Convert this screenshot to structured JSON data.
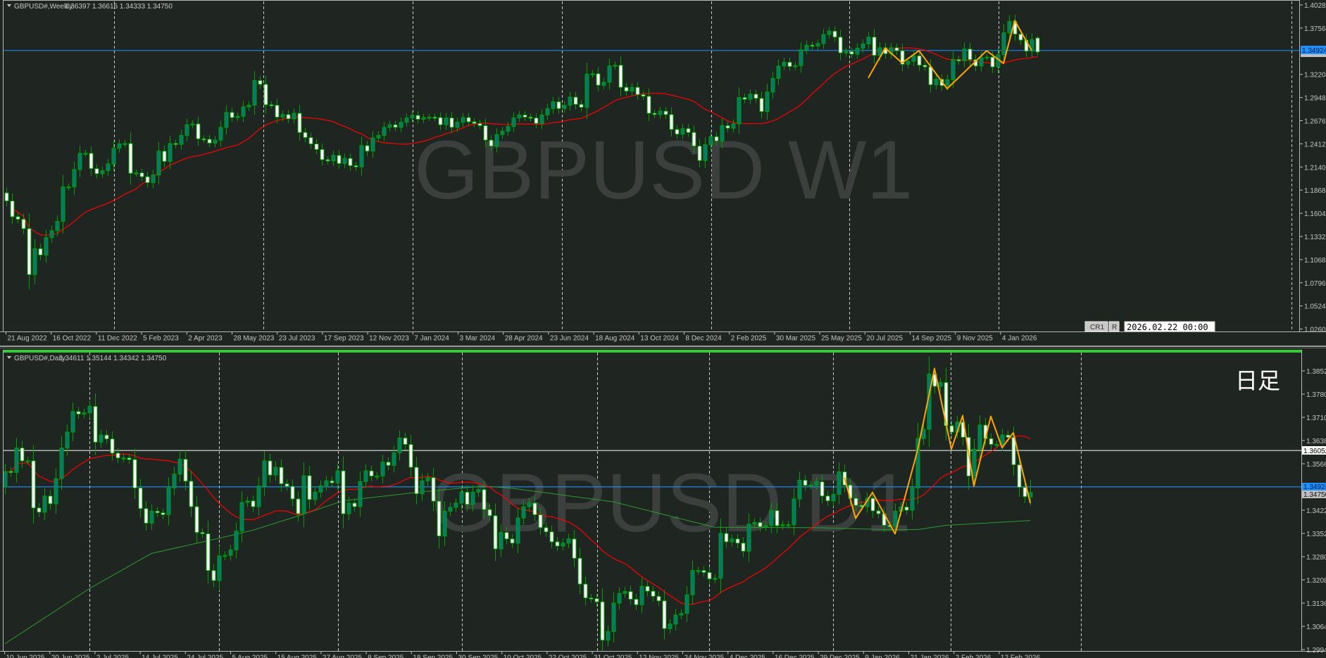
{
  "weekly": {
    "symbol": "GBPUSD#,Weekly",
    "ohlc": "1.36397 1.36615 1.34333 1.34750",
    "watermark": "GBPUSD W1",
    "price_ticks": [
      "1.40280",
      "1.37560",
      "1.32200",
      "1.29480",
      "1.26760",
      "1.24120",
      "1.21400",
      "1.18680",
      "1.16040",
      "1.13320",
      "1.10680",
      "1.07960",
      "1.05240",
      "1.02600"
    ],
    "bid_label": "1.34924",
    "close_label": "1.34750",
    "date_labels": [
      "21 Aug 2022",
      "16 Oct 2022",
      "11 Dec 2022",
      "5 Feb 2023",
      "2 Apr 2023",
      "28 May 2023",
      "23 Jul 2023",
      "17 Sep 2023",
      "12 Nov 2023",
      "7 Jan 2024",
      "3 Mar 2024",
      "28 Apr 2024",
      "23 Jun 2024",
      "18 Aug 2024",
      "13 Oct 2024",
      "8 Dec 2024",
      "2 Feb 2025",
      "30 Mar 2025",
      "25 May 2025",
      "20 Jul 2025",
      "14 Sep 2025",
      "9 Nov 2025",
      "4 Jan 2026"
    ],
    "cr1_button": "CR1",
    "r_button": "R",
    "datetime_value": "2026.02.22 00:00"
  },
  "daily": {
    "symbol": "GBPUSD#,Daily",
    "ohlc": "1.34611 1.35144 1.34342 1.34750",
    "watermark": "GBPUSD D1",
    "timeframe_label": "日足",
    "price_ticks": [
      "1.38520",
      "1.37800",
      "1.37100",
      "1.36380",
      "1.35660",
      "1.34220",
      "1.33520",
      "1.32800",
      "1.32080",
      "1.31360",
      "1.30640",
      "1.29940"
    ],
    "hline_label": "1.36052",
    "bid_label": "1.34924",
    "close_label": "1.34750",
    "date_labels": [
      "10 Jun 2025",
      "20 Jun 2025",
      "2 Jul 2025",
      "14 Jul 2025",
      "24 Jul 2025",
      "5 Aug 2025",
      "15 Aug 2025",
      "27 Aug 2025",
      "8 Sep 2025",
      "18 Sep 2025",
      "30 Sep 2025",
      "10 Oct 2025",
      "22 Oct 2025",
      "31 Oct 2025",
      "12 Nov 2025",
      "24 Nov 2025",
      "4 Dec 2025",
      "16 Dec 2025",
      "29 Dec 2025",
      "9 Jan 2026",
      "21 Jan 2026",
      "2 Feb 2026",
      "12 Feb 2026"
    ]
  },
  "colors": {
    "background": "#1f2622",
    "bull_body": "#007a6e",
    "bull_outline": "#00a000",
    "bear_body": "#ffffff",
    "wick": "#00a000",
    "ma_fast": "#ff0000",
    "ma_slow": "#2e9a2e",
    "zigzag": "#ffa500",
    "bid_line": "#1e90ff",
    "hline": "#ffffff",
    "active_bar": "#33cc33"
  },
  "chart_data": [
    {
      "type": "candlestick",
      "title": "",
      "timeframe": "W1",
      "ylim": [
        1.026,
        1.4028
      ],
      "grid": false,
      "first_open": 1.182,
      "last_bar": {
        "open": 1.36397,
        "high": 1.36615,
        "low": 1.34333,
        "close": 1.3475
      },
      "closes": [
        1.1725,
        1.154,
        1.151,
        1.14,
        1.086,
        1.1165,
        1.109,
        1.1295,
        1.1375,
        1.1485,
        1.189,
        1.189,
        1.2095,
        1.2285,
        1.2285,
        1.2105,
        1.2045,
        1.208,
        1.216,
        1.2345,
        1.2395,
        1.24,
        1.205,
        1.2055,
        1.201,
        1.194,
        1.203,
        1.231,
        1.219,
        1.24,
        1.239,
        1.2495,
        1.262,
        1.263,
        1.2455,
        1.245,
        1.2405,
        1.244,
        1.259,
        1.2765,
        1.2705,
        1.272,
        1.283,
        1.285,
        1.314,
        1.3095,
        1.2855,
        1.285,
        1.271,
        1.274,
        1.269,
        1.2755,
        1.253,
        1.247,
        1.2395,
        1.233,
        1.221,
        1.2195,
        1.226,
        1.2165,
        1.2225,
        1.214,
        1.2125,
        1.2375,
        1.231,
        1.2465,
        1.2495,
        1.259,
        1.262,
        1.259,
        1.265,
        1.27,
        1.273,
        1.2685,
        1.2705,
        1.271,
        1.2705,
        1.262,
        1.27,
        1.259,
        1.265,
        1.2705,
        1.2655,
        1.2635,
        1.261,
        1.244,
        1.237,
        1.2505,
        1.2545,
        1.26,
        1.27,
        1.2735,
        1.271,
        1.27,
        1.2635,
        1.2735,
        1.281,
        1.289,
        1.281,
        1.285,
        1.2945,
        1.286,
        1.2825,
        1.3215,
        1.322,
        1.3085,
        1.312,
        1.331,
        1.332,
        1.306,
        1.3015,
        1.306,
        1.2975,
        1.2955,
        1.2755,
        1.274,
        1.278,
        1.274,
        1.2565,
        1.251,
        1.2575,
        1.253,
        1.237,
        1.22,
        1.2385,
        1.248,
        1.243,
        1.261,
        1.258,
        1.263,
        1.294,
        1.292,
        1.298,
        1.293,
        1.2775,
        1.3005,
        1.3165,
        1.331,
        1.3355,
        1.3305,
        1.3315,
        1.35,
        1.3555,
        1.3545,
        1.3575,
        1.368,
        1.372,
        1.365,
        1.3465,
        1.348,
        1.345,
        1.352,
        1.357,
        1.365,
        1.3435,
        1.3525,
        1.3455,
        1.3525,
        1.349,
        1.333,
        1.3365,
        1.343,
        1.332,
        1.33,
        1.309,
        1.3155,
        1.308,
        1.315,
        1.3385,
        1.337,
        1.351,
        1.3385,
        1.331,
        1.341,
        1.3415,
        1.33,
        1.3445,
        1.37,
        1.3835,
        1.3685,
        1.3615,
        1.3485,
        1.362,
        1.3475
      ],
      "zigzag": [
        [
          153,
          1.317
        ],
        [
          156,
          1.3521
        ],
        [
          159,
          1.3347
        ],
        [
          162,
          1.349
        ],
        [
          167,
          1.3044
        ],
        [
          174,
          1.349
        ],
        [
          177,
          1.3342
        ],
        [
          179,
          1.3844
        ],
        [
          182,
          1.3493
        ]
      ],
      "bid": 1.34924
    },
    {
      "type": "candlestick",
      "title": "",
      "timeframe": "D1",
      "ylim": [
        1.2994,
        1.3852
      ],
      "grid": false,
      "first_open": 1.3493,
      "last_bar": {
        "open": 1.34611,
        "high": 1.35144,
        "low": 1.34342,
        "close": 1.3475
      },
      "closes": [
        1.354,
        1.3537,
        1.3613,
        1.3573,
        1.3573,
        1.3427,
        1.3414,
        1.3464,
        1.344,
        1.3518,
        1.3613,
        1.3662,
        1.3726,
        1.3718,
        1.3722,
        1.3742,
        1.3631,
        1.3653,
        1.3641,
        1.3597,
        1.3582,
        1.3582,
        1.3577,
        1.3489,
        1.3425,
        1.338,
        1.3417,
        1.3412,
        1.3406,
        1.3489,
        1.3532,
        1.3578,
        1.351,
        1.3431,
        1.3351,
        1.3347,
        1.3233,
        1.3202,
        1.3278,
        1.328,
        1.3297,
        1.3355,
        1.3444,
        1.3449,
        1.3431,
        1.3495,
        1.3573,
        1.3529,
        1.3553,
        1.3502,
        1.3494,
        1.3455,
        1.3409,
        1.3527,
        1.3453,
        1.3476,
        1.3496,
        1.3511,
        1.3505,
        1.3542,
        1.3409,
        1.3442,
        1.3431,
        1.3509,
        1.3542,
        1.3526,
        1.3526,
        1.3569,
        1.3559,
        1.3598,
        1.3644,
        1.3624,
        1.3553,
        1.3471,
        1.3511,
        1.3521,
        1.3448,
        1.334,
        1.3417,
        1.3429,
        1.3442,
        1.3476,
        1.3438,
        1.3476,
        1.3484,
        1.3422,
        1.3403,
        1.33,
        1.3351,
        1.3331,
        1.3318,
        1.3396,
        1.3431,
        1.3442,
        1.3406,
        1.3366,
        1.3353,
        1.3322,
        1.3309,
        1.3318,
        1.3331,
        1.3271,
        1.3191,
        1.3148,
        1.3146,
        1.3136,
        1.3017,
        1.3044,
        1.3132,
        1.3162,
        1.3168,
        1.3144,
        1.3127,
        1.3184,
        1.3169,
        1.3153,
        1.3139,
        1.3053,
        1.3067,
        1.3095,
        1.31,
        1.3158,
        1.3233,
        1.3233,
        1.3227,
        1.3207,
        1.3209,
        1.3348,
        1.3322,
        1.3331,
        1.3318,
        1.3293,
        1.3377,
        1.3382,
        1.3369,
        1.3372,
        1.3419,
        1.3372,
        1.3375,
        1.3375,
        1.3455,
        1.3513,
        1.3497,
        1.3498,
        1.3508,
        1.3464,
        1.3449,
        1.3469,
        1.3539,
        1.3498,
        1.3457,
        1.3435,
        1.3431,
        1.3457,
        1.3418,
        1.3409,
        1.3373,
        1.3369,
        1.3417,
        1.343,
        1.342,
        1.3489,
        1.3642,
        1.3671,
        1.3842,
        1.3804,
        1.3816,
        1.3682,
        1.3662,
        1.3693,
        1.3646,
        1.3526,
        1.3609,
        1.3684,
        1.3642,
        1.3624,
        1.3624,
        1.3653,
        1.3646,
        1.3561,
        1.3491,
        1.3462,
        1.3475
      ],
      "ma_slow": [
        [
          0,
          1.3006
        ],
        [
          15,
          1.3177
        ],
        [
          26,
          1.3286
        ],
        [
          38,
          1.3333
        ],
        [
          44,
          1.3358
        ],
        [
          52,
          1.3402
        ],
        [
          60,
          1.3449
        ],
        [
          73,
          1.3475
        ],
        [
          85,
          1.3495
        ],
        [
          90,
          1.3488
        ],
        [
          108,
          1.3446
        ],
        [
          126,
          1.3367
        ],
        [
          144,
          1.3366
        ],
        [
          156,
          1.336
        ],
        [
          162,
          1.336
        ],
        [
          167,
          1.3373
        ],
        [
          182,
          1.3388
        ]
      ],
      "zigzag": [
        [
          149,
          1.3522
        ],
        [
          151,
          1.3395
        ],
        [
          154,
          1.3475
        ],
        [
          158,
          1.3347
        ],
        [
          162,
          1.3606
        ],
        [
          165,
          1.3859
        ],
        [
          168,
          1.3609
        ],
        [
          170,
          1.3713
        ],
        [
          172,
          1.3495
        ],
        [
          175,
          1.3711
        ],
        [
          177,
          1.3614
        ],
        [
          179,
          1.366
        ],
        [
          182,
          1.3442
        ]
      ],
      "hline": 1.36052,
      "bid": 1.34924
    }
  ]
}
